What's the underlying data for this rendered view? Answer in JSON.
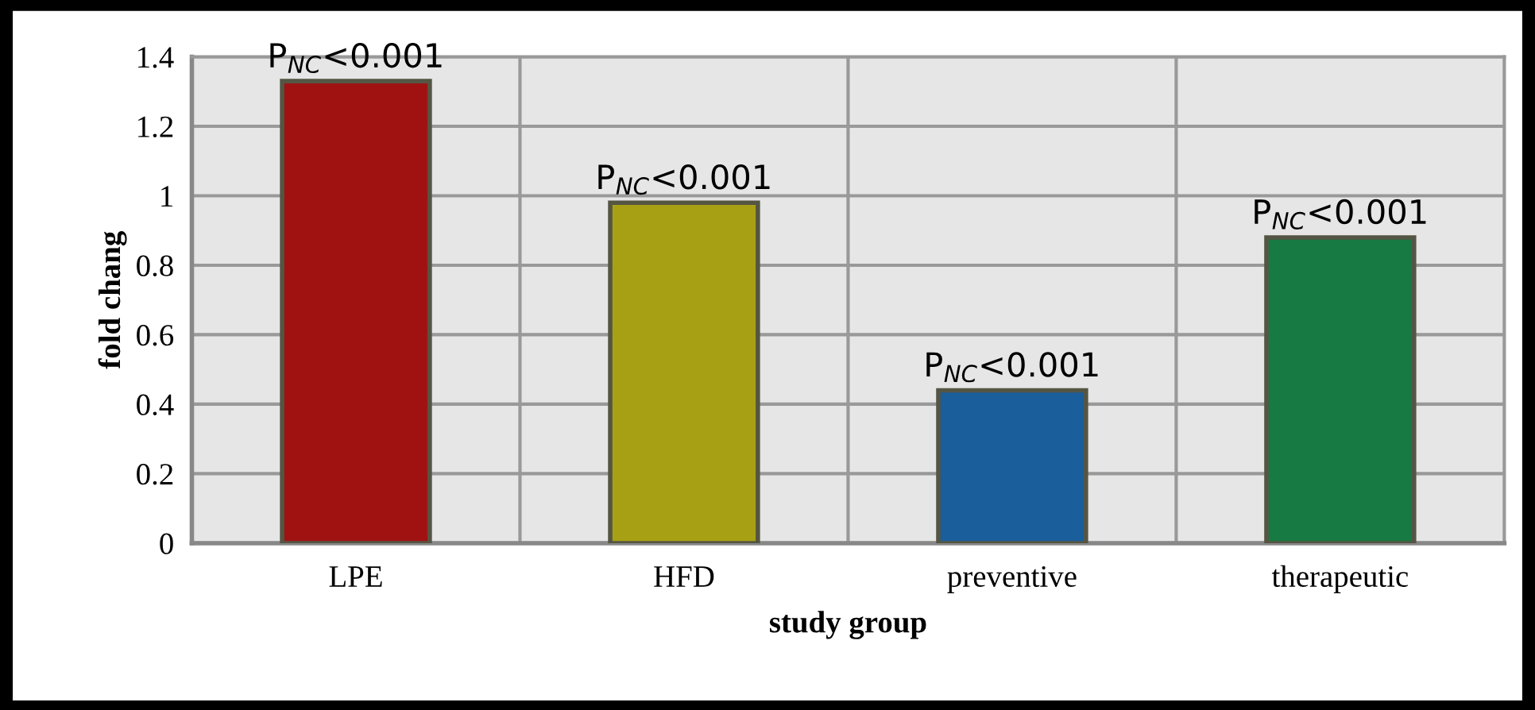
{
  "chart_data": {
    "type": "bar",
    "xlabel": "study group",
    "ylabel": "fold chang",
    "categories": [
      "LPE",
      "HFD",
      "preventive",
      "therapeutic"
    ],
    "values": [
      1.33,
      0.98,
      0.44,
      0.88
    ],
    "colors": [
      "#a01212",
      "#a8a014",
      "#1a5e9c",
      "#177a42"
    ],
    "ylim": [
      0,
      1.4
    ],
    "yticks": [
      0,
      0.2,
      0.4,
      0.6,
      0.8,
      1,
      1.2,
      1.4
    ],
    "grid": true,
    "annotations": [
      {
        "text": "P$_{NC}$<0.001",
        "x": "LPE",
        "y": 1.33
      },
      {
        "text": "P$_{NC}$<0.001",
        "x": "HFD",
        "y": 0.98
      },
      {
        "text": "P$_{NC}$<0.001",
        "x": "preventive",
        "y": 0.44
      },
      {
        "text": "P$_{NC}$<0.001",
        "x": "therapeutic",
        "y": 0.88
      }
    ]
  }
}
